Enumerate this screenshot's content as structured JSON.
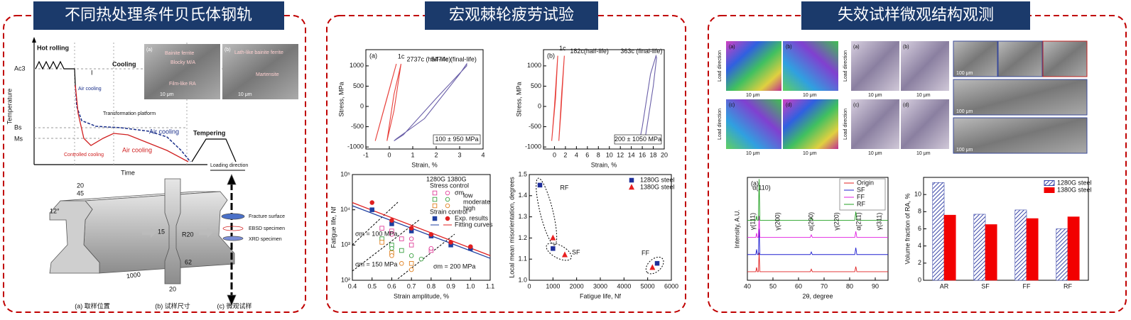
{
  "heat_treatment": {
    "title": "不同热处理条件贝氏体钢轨",
    "labels": {
      "hot_rolling": "Hot rolling",
      "cooling": "Cooling",
      "ac3": "Ac3",
      "bs": "Bs",
      "ms": "Ms",
      "temperature": "Temperature",
      "time": "Time",
      "air_cooling_1": "Air cooling",
      "stage": "I",
      "platform": "Transformation platform",
      "air_cooling_2": "Air cooling",
      "controlled": "Controlled cooling",
      "air_cooling_3": "Air cooling",
      "tempering": "Tempering",
      "loading": "Loading direction"
    },
    "micrographs": {
      "labels": [
        "(a)",
        "(b)"
      ],
      "scale": "10 μm",
      "phases": [
        "Bainite ferrite",
        "Blocky M/A",
        "Film-like RA",
        "Lath-like bainite ferrite",
        "Martensite"
      ]
    },
    "rail": {
      "dims": [
        "20",
        "12°",
        "45",
        "1000",
        "15",
        "R20",
        "62",
        "20"
      ],
      "specimens": [
        "Fracture surface",
        "EBSD specimen",
        "XRD specimen"
      ],
      "captions": [
        "(a) 取样位置",
        "(b) 试样尺寸",
        "(c) 微观试样"
      ]
    }
  },
  "ratcheting": {
    "title": "宏观棘轮疲劳试验",
    "hysteresis": [
      {
        "type": "line",
        "label": "(a)",
        "x_label": "Strain, %",
        "y_label": "Stress, MPa",
        "load": "100 ± 950 MPa",
        "xlim": [
          -1,
          4
        ],
        "xticks": [
          -1,
          0,
          1,
          2,
          3,
          4
        ],
        "ylim": [
          -1050,
          1400
        ],
        "yticks": [
          -1000,
          -500,
          0,
          500,
          1000
        ],
        "series": [
          {
            "name": "1c",
            "color": "#e8413c",
            "x": [
              -0.6,
              -0.1,
              0.3,
              -0.2,
              -0.6
            ],
            "values": [
              -850,
              200,
              1050,
              0,
              -850
            ]
          },
          {
            "name": "2737c (half-life)",
            "color": "#e8413c",
            "x": [
              -0.1,
              0.2,
              0.5,
              0.2,
              -0.1
            ],
            "values": [
              -850,
              300,
              1050,
              -100,
              -850
            ]
          },
          {
            "name": "5474c (final-life)",
            "color": "#6a5fa8",
            "x": [
              0.2,
              0.6,
              2.0,
              3.3,
              3.3,
              3.0,
              1.5,
              0.3,
              0.2
            ],
            "values": [
              -850,
              -700,
              200,
              1000,
              1050,
              800,
              -300,
              -800,
              -850
            ]
          }
        ]
      },
      {
        "type": "line",
        "label": "(b)",
        "x_label": "Strain, %",
        "y_label": "Stress, MPa",
        "load": "200 ± 1050 MPa",
        "xlim": [
          -2,
          20
        ],
        "xticks": [
          0,
          2,
          4,
          6,
          8,
          10,
          12,
          14,
          16,
          18,
          20
        ],
        "ylim": [
          -1050,
          1400
        ],
        "yticks": [
          -1000,
          -500,
          0,
          500,
          1000
        ],
        "series": [
          {
            "name": "1c",
            "color": "#e8413c",
            "x": [
              -0.5,
              0.2,
              0.6,
              0,
              -0.5
            ],
            "values": [
              -850,
              200,
              1250,
              0,
              -850
            ]
          },
          {
            "name": "182c(half-life)",
            "color": "#e8413c",
            "x": [
              0.8,
              1.3,
              1.8,
              1.2,
              0.8
            ],
            "values": [
              -850,
              300,
              1250,
              -100,
              -850
            ]
          },
          {
            "name": "363c (final-life)",
            "color": "#6a5fa8",
            "x": [
              15.5,
              16,
              17.5,
              18.5,
              18.6,
              18,
              16.5,
              15.6,
              15.5
            ],
            "values": [
              -850,
              -500,
              800,
              1250,
              1200,
              500,
              -800,
              -850,
              -850
            ]
          }
        ]
      }
    ],
    "fatigue": {
      "type": "scatter",
      "log_y": true,
      "x_label": "Strain amplitude, %",
      "y_label": "Fatigue life, Nf",
      "xlim": [
        0.4,
        1.1
      ],
      "xticks": [
        0.4,
        0.5,
        0.6,
        0.7,
        0.8,
        0.9,
        {
          "value": 1,
          "label": "1.0"
        },
        1.1
      ],
      "ylim": [
        100,
        100000
      ],
      "yticks": [
        {
          "value": 100,
          "label": "10²"
        },
        {
          "value": 1000,
          "label": "10³"
        },
        {
          "value": 10000,
          "label": "10⁴"
        },
        {
          "value": 100000,
          "label": "10⁵"
        }
      ],
      "legend": {
        "header": "1280G 1380G",
        "stress_control": "Stress control",
        "symbol": "σm",
        "strain_control": "Strain control",
        "fitting": "Fitting curves"
      },
      "annotations": [
        "σm = 100 MPa",
        "σm = 150 MPa",
        "σm = 200 MPa"
      ],
      "series": [
        {
          "name": "low",
          "color": "#e0409a",
          "marker": "square",
          "filled": false,
          "x": [
            0.55,
            0.6,
            0.65,
            0.7,
            0.8
          ],
          "values": [
            3000,
            2500,
            1500,
            1000,
            700
          ]
        },
        {
          "color": "#e0409a",
          "marker": "circle",
          "filled": false,
          "x": [
            0.6,
            0.7,
            0.8
          ],
          "values": [
            2000,
            1500,
            800
          ]
        },
        {
          "name": "moderate",
          "color": "#3aa040",
          "marker": "square",
          "filled": false,
          "x": [
            0.55,
            0.6,
            0.65
          ],
          "values": [
            1500,
            1000,
            700
          ]
        },
        {
          "color": "#3aa040",
          "marker": "circle",
          "filled": false,
          "x": [
            0.6,
            0.7,
            0.75
          ],
          "values": [
            800,
            500,
            400
          ]
        },
        {
          "name": "high",
          "color": "#e08020",
          "marker": "square",
          "filled": false,
          "x": [
            0.55,
            0.6,
            0.7
          ],
          "values": [
            1200,
            600,
            300
          ]
        },
        {
          "color": "#e08020",
          "marker": "circle",
          "filled": false,
          "x": [
            0.6,
            0.65,
            0.7
          ],
          "values": [
            500,
            300,
            200
          ]
        },
        {
          "name": "Exp. results",
          "color": "#1f3fa0",
          "marker": "square",
          "filled": true,
          "x": [
            0.5,
            0.6,
            0.7,
            0.8,
            0.9,
            1
          ],
          "values": [
            10000,
            4000,
            2500,
            1800,
            1000,
            800
          ]
        },
        {
          "color": "#e02020",
          "marker": "circle",
          "filled": true,
          "x": [
            0.5,
            0.6,
            0.7,
            0.8,
            0.9,
            1
          ],
          "values": [
            16000,
            5000,
            3000,
            2000,
            1200,
            900
          ]
        }
      ],
      "fits": [
        {
          "color": "#1f3fa0",
          "x": [
            0.4,
            1.1
          ],
          "values": [
            13000,
            420
          ]
        },
        {
          "color": "#e02020",
          "x": [
            0.4,
            1.1
          ],
          "values": [
            16000,
            500
          ]
        }
      ]
    },
    "misorientation": {
      "type": "scatter",
      "x_label": "Fatigue life, Nf",
      "y_label": "Local mean misorientation, degrees",
      "xlim": [
        0,
        6000
      ],
      "xticks": [
        0,
        1000,
        2000,
        3000,
        4000,
        5000,
        6000
      ],
      "ylim": [
        1,
        1.5
      ],
      "yticks": [
        {
          "value": 1,
          "label": "1.0"
        },
        1.1,
        1.2,
        1.3,
        1.4,
        1.5
      ],
      "legend": "upper right",
      "groups": [
        "RF",
        "SF",
        "FF"
      ],
      "series": [
        {
          "name": "1280G steel",
          "color": "#1f2f9a",
          "marker": "square",
          "filled": true,
          "x": [
            450,
            1000,
            5400
          ],
          "values": [
            1.45,
            1.15,
            1.08
          ]
        },
        {
          "name": "1380G steel",
          "color": "#e82020",
          "marker": "triangle",
          "filled": true,
          "x": [
            1000,
            1500,
            5200
          ],
          "values": [
            1.2,
            1.12,
            1.06
          ]
        }
      ]
    }
  },
  "microstructure": {
    "title": "失效试样微观结构观测",
    "micrographs": {
      "labels": [
        "(a)",
        "(b)",
        "(c)",
        "(d)"
      ],
      "load_direction": "Load direction",
      "scale": "10 μm",
      "scale_sem": "100 μm"
    },
    "xrd": {
      "type": "line",
      "label": "(a)",
      "x_label": "2θ, degree",
      "y_label": "Intensity, A.U.",
      "legend": "upper right",
      "xlim": [
        40,
        95
      ],
      "xticks": [
        40,
        50,
        60,
        70,
        80,
        90
      ],
      "ylim": [
        0,
        12
      ],
      "peaks": [
        "α(110)",
        "γ(111)",
        "γ(200)",
        "α(200)",
        "γ(220)",
        "α(211)",
        "γ(311)"
      ],
      "x": [
        40,
        43.3,
        43.6,
        43.9,
        44.3,
        44.6,
        44.9,
        64.6,
        65,
        65.4,
        82,
        82.4,
        82.8,
        95
      ],
      "series": [
        {
          "name": "Origin",
          "color": "#e02020",
          "values": [
            1,
            1,
            1.5,
            1,
            1,
            3.2,
            1,
            1,
            1.3,
            1,
            1,
            1.6,
            1,
            1
          ]
        },
        {
          "name": "SF",
          "color": "#2020d0",
          "values": [
            3,
            3,
            3.6,
            3,
            3,
            6,
            3,
            3,
            3.3,
            3,
            3,
            3.8,
            3,
            3
          ]
        },
        {
          "name": "FF",
          "color": "#e020e0",
          "values": [
            5,
            5,
            5.5,
            5,
            5,
            7.5,
            5,
            5,
            5.3,
            5,
            5,
            5.7,
            5,
            5
          ]
        },
        {
          "name": "RF",
          "color": "#20a020",
          "values": [
            7,
            7,
            7.5,
            7,
            7,
            11.8,
            7,
            7,
            7.3,
            7,
            7,
            8,
            7,
            7
          ]
        }
      ]
    },
    "retained_austenite": {
      "type": "bar",
      "y_label": "Volume fraction of RA, %",
      "legend": "upper right",
      "categories": [
        "AR",
        "SF",
        "FF",
        "RF"
      ],
      "ylim": [
        0,
        12
      ],
      "yticks": [
        0,
        2,
        4,
        6,
        8,
        10
      ],
      "series": [
        {
          "name": "1280G steel",
          "color": "#3a46a8",
          "hatch": true,
          "values": [
            11.4,
            7.7,
            8.2,
            6.0
          ]
        },
        {
          "name": "1380G steel",
          "color": "#f20000",
          "hatch": false,
          "values": [
            7.6,
            6.5,
            7.2,
            7.4
          ]
        }
      ]
    }
  }
}
